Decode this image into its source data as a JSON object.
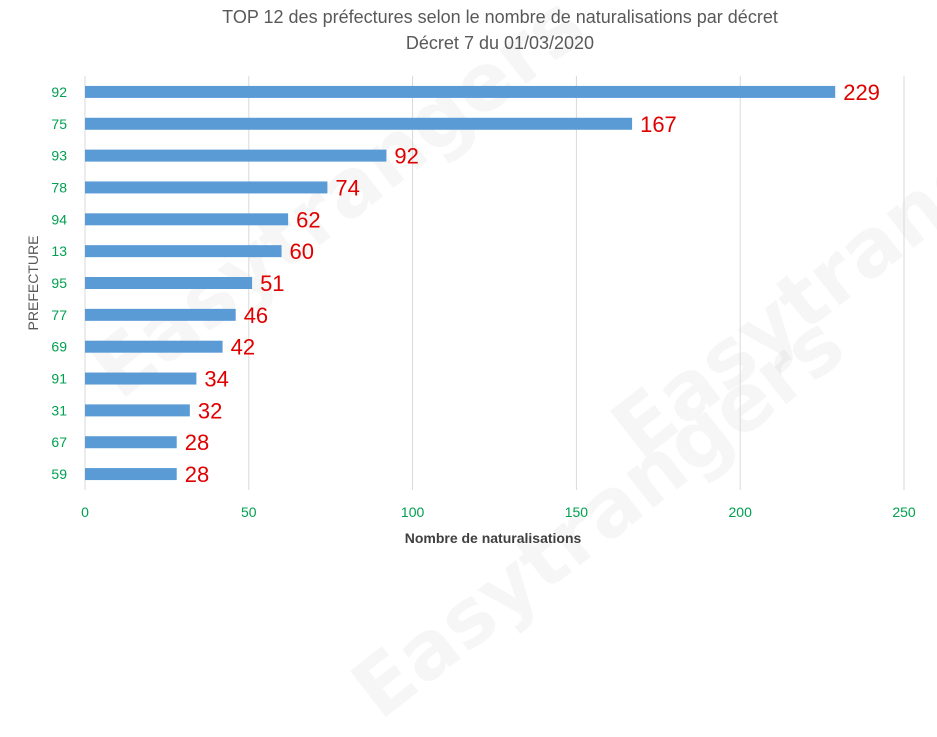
{
  "chart_data": {
    "type": "bar",
    "orientation": "horizontal",
    "title": "TOP 12 des préfectures selon le nombre de naturalisations par décret",
    "subtitle": "Décret 7 du 01/03/2020",
    "xlabel": "Nombre de naturalisations",
    "ylabel": "PREFECTURE",
    "xlim": [
      0,
      250
    ],
    "xticks": [
      "0",
      "50",
      "100",
      "150",
      "200",
      "250"
    ],
    "grid": true,
    "categories": [
      "92",
      "75",
      "93",
      "78",
      "94",
      "13",
      "95",
      "77",
      "69",
      "91",
      "31",
      "67",
      "59"
    ],
    "values": [
      229,
      167,
      92,
      74,
      62,
      60,
      51,
      46,
      42,
      34,
      32,
      28,
      28
    ],
    "data_labels": [
      "229",
      "167",
      "92",
      "74",
      "62",
      "60",
      "51",
      "46",
      "42",
      "34",
      "32",
      "28",
      "28"
    ],
    "bar_color": "#5b9bd5",
    "label_color": "#e00000",
    "tick_color": "#00a050"
  },
  "watermark": "Easytrangers"
}
